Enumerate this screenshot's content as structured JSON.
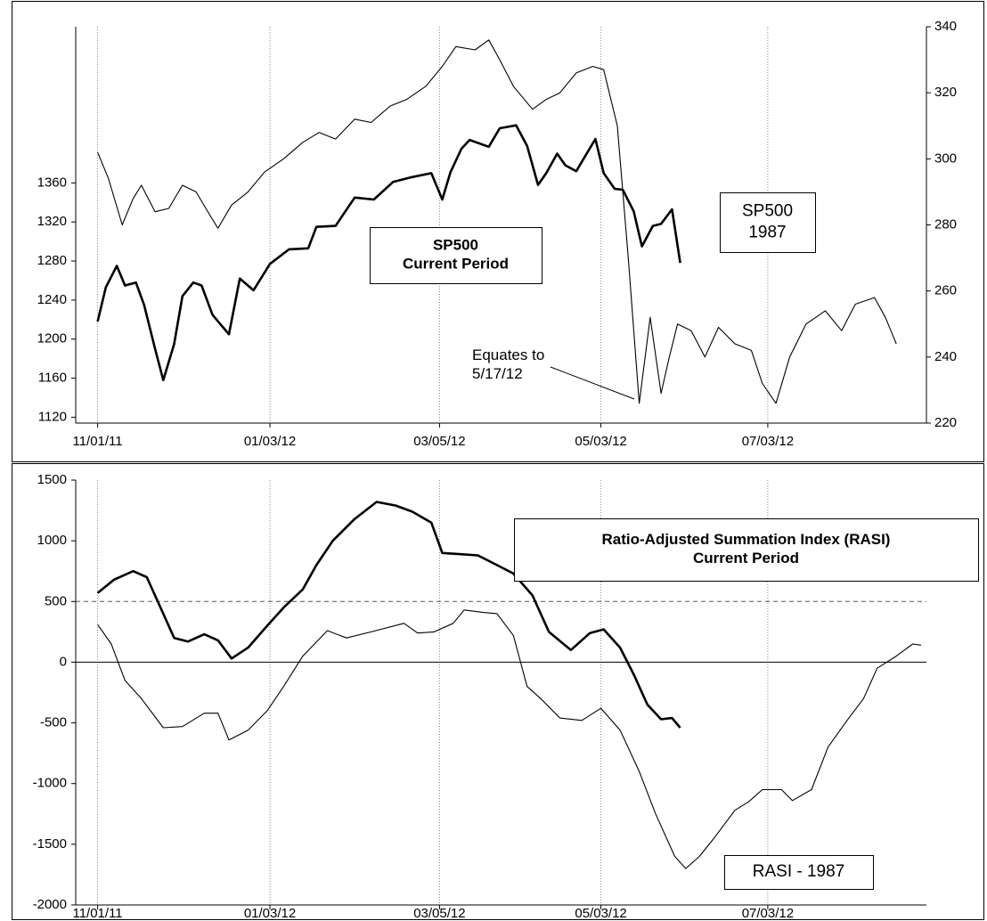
{
  "chart_data": [
    {
      "type": "line",
      "xlim": [
        "10/24/11",
        "08/30/12"
      ],
      "xticks": [
        "11/01/11",
        "01/03/12",
        "03/05/12",
        "05/03/12",
        "07/03/12"
      ],
      "ylim": [
        1114,
        1520
      ],
      "yticks": [
        1120,
        1160,
        1200,
        1240,
        1280,
        1320,
        1360
      ],
      "y2lim": [
        220,
        340
      ],
      "y2ticks": [
        220,
        240,
        260,
        280,
        300,
        320,
        340
      ],
      "grid": true,
      "series": [
        {
          "color": "#000000",
          "line_width": 2.6,
          "x": [
            "11/01/11",
            "11/04/11",
            "11/08/11",
            "11/11/11",
            "11/15/11",
            "11/18/11",
            "11/22/11",
            "11/25/11",
            "11/29/11",
            "12/02/11",
            "12/06/11",
            "12/09/11",
            "12/13/11",
            "12/16/11",
            "12/19/11",
            "12/23/11",
            "12/28/11",
            "01/03/12",
            "01/10/12",
            "01/17/12",
            "01/20/12",
            "01/27/12",
            "02/03/12",
            "02/10/12",
            "02/17/12",
            "02/24/12",
            "03/02/12",
            "03/06/12",
            "03/09/12",
            "03/13/12",
            "03/16/12",
            "03/23/12",
            "03/27/12",
            "04/02/12",
            "04/06/12",
            "04/10/12",
            "04/13/12",
            "04/17/12",
            "04/20/12",
            "04/24/12",
            "05/01/12",
            "05/04/12",
            "05/08/12",
            "05/11/12",
            "05/15/12",
            "05/18/12",
            "05/22/12",
            "05/25/12",
            "05/29/12",
            "06/01/12"
          ],
          "values": [
            1218,
            1253,
            1275,
            1255,
            1258,
            1235,
            1190,
            1158,
            1195,
            1244,
            1258,
            1255,
            1225,
            1215,
            1205,
            1262,
            1250,
            1277,
            1292,
            1293,
            1315,
            1316,
            1345,
            1343,
            1361,
            1366,
            1370,
            1343,
            1371,
            1395,
            1404,
            1397,
            1416,
            1419,
            1398,
            1358,
            1370,
            1390,
            1378,
            1372,
            1405,
            1370,
            1354,
            1353,
            1331,
            1295,
            1316,
            1318,
            1333,
            1278
          ]
        },
        {
          "color": "#000000",
          "line_width": 1.1,
          "axis": "y2",
          "x": [
            "11/01/11",
            "11/05/11",
            "11/10/11",
            "11/14/11",
            "11/17/11",
            "11/22/11",
            "11/27/11",
            "12/02/11",
            "12/07/11",
            "12/12/11",
            "12/15/11",
            "12/20/11",
            "12/26/11",
            "01/01/12",
            "01/08/12",
            "01/15/12",
            "01/21/12",
            "01/27/12",
            "02/03/12",
            "02/09/12",
            "02/16/12",
            "02/22/12",
            "02/29/12",
            "03/06/12",
            "03/11/12",
            "03/18/12",
            "03/23/12",
            "03/27/12",
            "04/01/12",
            "04/08/12",
            "04/13/12",
            "04/18/12",
            "04/24/12",
            "04/30/12",
            "05/04/12",
            "05/09/12",
            "05/13/12",
            "05/17/12",
            "05/21/12",
            "05/25/12",
            "05/28/12",
            "05/31/12",
            "06/05/12",
            "06/10/12",
            "06/15/12",
            "06/21/12",
            "06/27/12",
            "07/01/12",
            "07/06/12",
            "07/11/12",
            "07/17/12",
            "07/24/12",
            "07/30/12",
            "08/04/12",
            "08/11/12",
            "08/15/12",
            "08/19/12"
          ],
          "values": [
            302,
            294,
            280,
            288,
            292,
            284,
            285,
            292,
            290,
            283,
            279,
            286,
            290,
            296,
            300,
            305,
            308,
            306,
            312,
            311,
            316,
            318,
            322,
            328,
            334,
            333,
            336,
            330,
            322,
            315,
            318,
            320,
            326,
            328,
            327,
            310,
            270,
            226,
            252,
            229,
            240,
            250,
            248,
            240,
            249,
            244,
            242,
            232,
            226,
            240,
            250,
            254,
            248,
            256,
            258,
            252,
            244
          ]
        }
      ],
      "annotations": [
        {
          "lines": [
            "SP500",
            "Current Period"
          ]
        },
        {
          "lines": [
            "SP500",
            "1987"
          ]
        },
        {
          "lines": [
            "Equates to",
            "5/17/12"
          ]
        }
      ]
    },
    {
      "type": "line",
      "xlim": [
        "10/24/11",
        "08/30/12"
      ],
      "xticks": [
        "11/01/11",
        "01/03/12",
        "03/05/12",
        "05/03/12",
        "07/03/12"
      ],
      "ylim": [
        -2000,
        1500
      ],
      "yticks": [
        -2000,
        -1500,
        -1000,
        -500,
        0,
        500,
        1000,
        1500
      ],
      "grid": true,
      "reference_lines": [
        {
          "value": 0,
          "style": "solid"
        },
        {
          "value": 500,
          "style": "dashed"
        }
      ],
      "series": [
        {
          "color": "#000000",
          "line_width": 2.6,
          "x": [
            "11/01/11",
            "11/07/11",
            "11/14/11",
            "11/19/11",
            "11/24/11",
            "11/29/11",
            "12/04/11",
            "12/10/11",
            "12/15/11",
            "12/20/11",
            "12/26/11",
            "01/02/12",
            "01/08/12",
            "01/15/12",
            "01/20/12",
            "01/26/12",
            "02/03/12",
            "02/11/12",
            "02/18/12",
            "02/24/12",
            "03/02/12",
            "03/06/12",
            "03/19/12",
            "03/26/12",
            "04/01/12",
            "04/08/12",
            "04/14/12",
            "04/22/12",
            "04/29/12",
            "05/04/12",
            "05/10/12",
            "05/15/12",
            "05/20/12",
            "05/25/12",
            "05/29/12",
            "06/01/12"
          ],
          "values": [
            570,
            680,
            750,
            700,
            450,
            200,
            170,
            230,
            180,
            30,
            120,
            300,
            450,
            600,
            800,
            1000,
            1180,
            1320,
            1290,
            1240,
            1150,
            900,
            880,
            800,
            730,
            550,
            250,
            100,
            240,
            270,
            120,
            -100,
            -350,
            -470,
            -460,
            -540
          ]
        },
        {
          "color": "#000000",
          "line_width": 1.1,
          "x": [
            "11/01/11",
            "11/06/11",
            "11/11/11",
            "11/17/11",
            "11/25/11",
            "12/02/11",
            "12/10/11",
            "12/15/11",
            "12/19/11",
            "12/26/11",
            "01/02/12",
            "01/08/12",
            "01/15/12",
            "01/24/12",
            "01/31/12",
            "02/09/12",
            "02/21/12",
            "02/26/12",
            "03/03/12",
            "03/10/12",
            "03/14/12",
            "03/21/12",
            "03/26/12",
            "04/01/12",
            "04/06/12",
            "04/11/12",
            "04/18/12",
            "04/26/12",
            "05/03/12",
            "05/10/12",
            "05/17/12",
            "05/23/12",
            "05/30/12",
            "06/03/12",
            "06/08/12",
            "06/13/12",
            "06/21/12",
            "06/26/12",
            "07/01/12",
            "07/08/12",
            "07/12/12",
            "07/19/12",
            "07/25/12",
            "08/01/12",
            "08/07/12",
            "08/12/12",
            "08/19/12",
            "08/25/12",
            "08/28/12"
          ],
          "values": [
            310,
            150,
            -150,
            -300,
            -540,
            -530,
            -420,
            -420,
            -640,
            -560,
            -400,
            -200,
            50,
            260,
            200,
            250,
            320,
            240,
            250,
            320,
            430,
            410,
            400,
            220,
            -200,
            -300,
            -460,
            -480,
            -380,
            -560,
            -900,
            -1250,
            -1600,
            -1700,
            -1600,
            -1460,
            -1220,
            -1150,
            -1050,
            -1050,
            -1140,
            -1050,
            -700,
            -480,
            -300,
            -50,
            50,
            150,
            140
          ]
        }
      ],
      "annotations": [
        {
          "lines": [
            "Ratio-Adjusted Summation Index (RASI)",
            "Current Period"
          ]
        },
        {
          "lines": [
            "RASI - 1987"
          ]
        }
      ]
    }
  ]
}
